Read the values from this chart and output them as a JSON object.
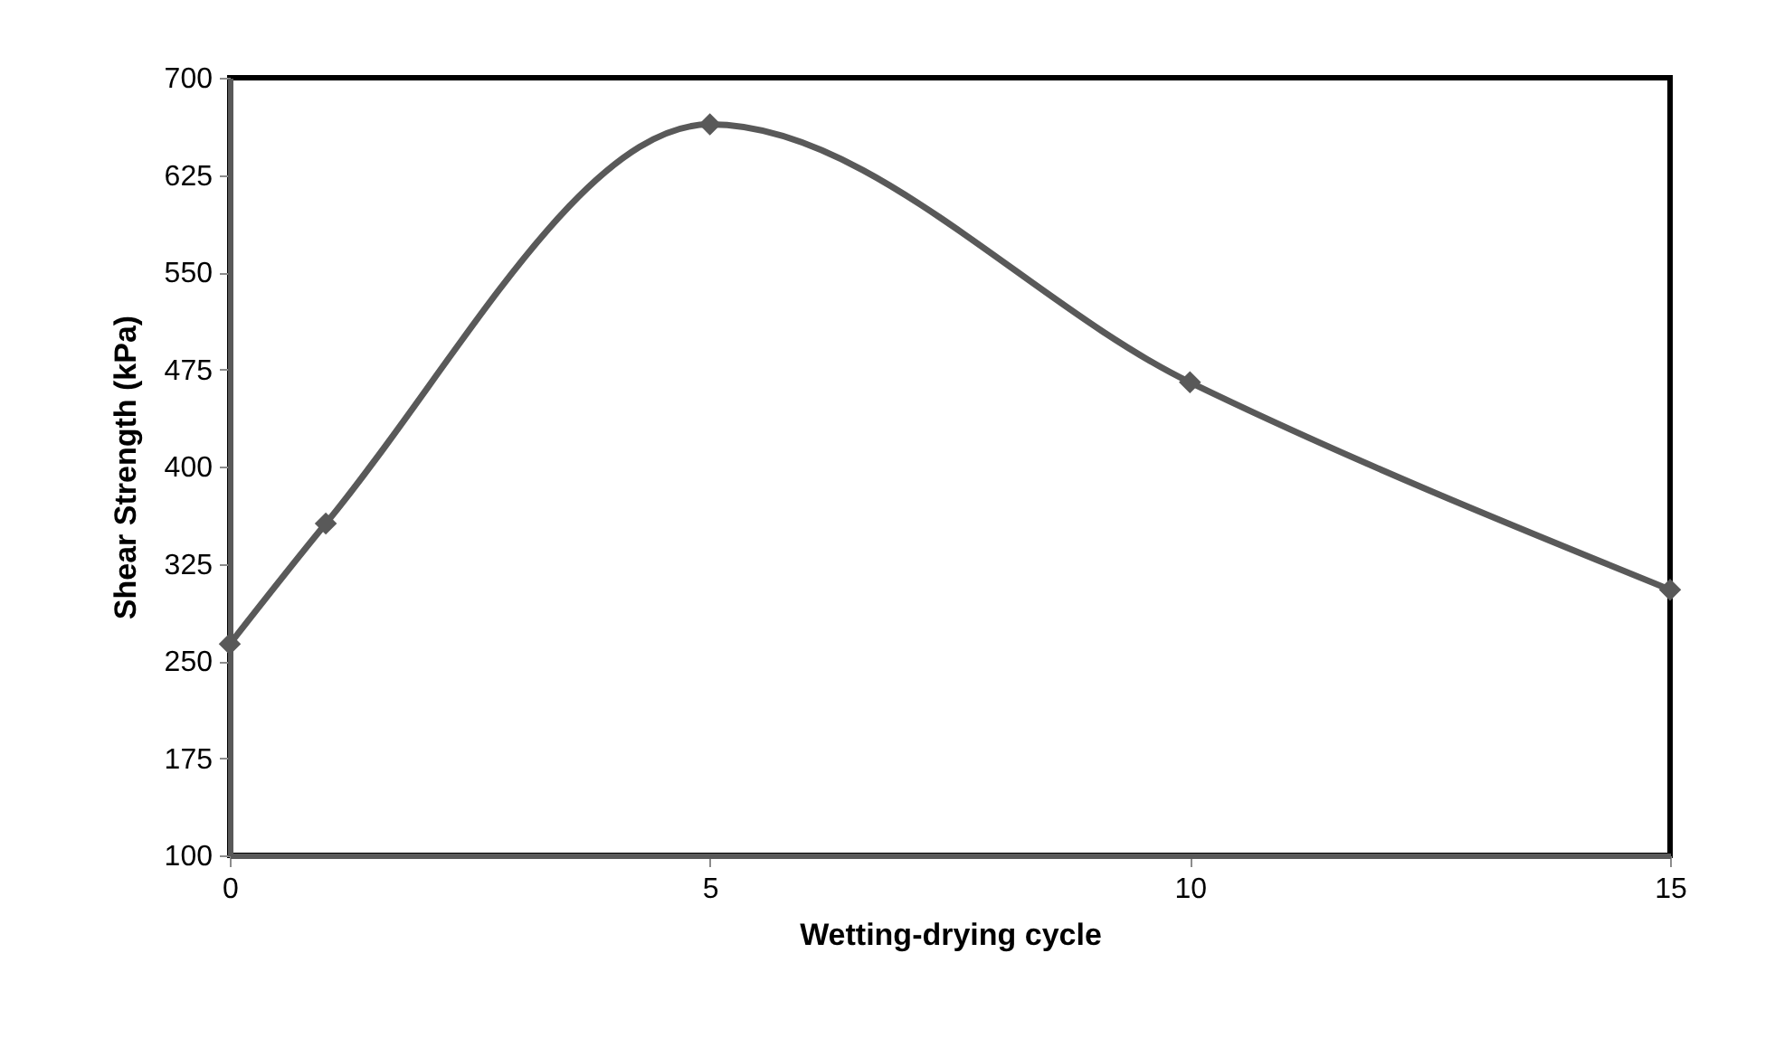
{
  "chart_data": {
    "type": "line",
    "xlabel": "Wetting-drying cycle",
    "ylabel": "Shear Strength (kPa)",
    "x": [
      0,
      1,
      5,
      10,
      15
    ],
    "series": [
      {
        "color": "#595959",
        "values": [
          263,
          356,
          664,
          465,
          305
        ]
      }
    ],
    "xlim": [
      0,
      15
    ],
    "xticks": [
      0,
      5,
      10,
      15
    ],
    "ylim": [
      100,
      700
    ],
    "yticks": [
      100,
      175,
      250,
      325,
      400,
      475,
      550,
      625,
      700
    ],
    "grid": false,
    "marker": "diamond",
    "line_style": "solid"
  }
}
